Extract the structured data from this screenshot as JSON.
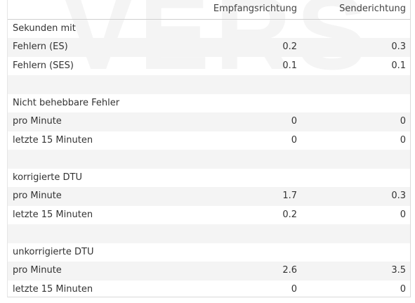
{
  "header": {
    "rx_label": "Empfangsrichtung",
    "tx_label": "Senderichtung"
  },
  "sections": [
    {
      "title": "Sekunden mit",
      "rows": [
        {
          "label": "Fehlern (ES)",
          "rx": "0.2",
          "tx": "0.3"
        },
        {
          "label": "Fehlern (SES)",
          "rx": "0.1",
          "tx": "0.1"
        }
      ]
    },
    {
      "title": "Nicht behebbare Fehler",
      "rows": [
        {
          "label": "pro Minute",
          "rx": "0",
          "tx": "0"
        },
        {
          "label": "letzte 15 Minuten",
          "rx": "0",
          "tx": "0"
        }
      ]
    },
    {
      "title": "korrigierte DTU",
      "rows": [
        {
          "label": "pro Minute",
          "rx": "1.7",
          "tx": "0.3"
        },
        {
          "label": "letzte 15 Minuten",
          "rx": "0.2",
          "tx": "0"
        }
      ]
    },
    {
      "title": "unkorrigierte DTU",
      "rows": [
        {
          "label": "pro Minute",
          "rx": "2.6",
          "tx": "3.5"
        },
        {
          "label": "letzte 15 Minuten",
          "rx": "0",
          "tx": "0"
        }
      ]
    }
  ]
}
